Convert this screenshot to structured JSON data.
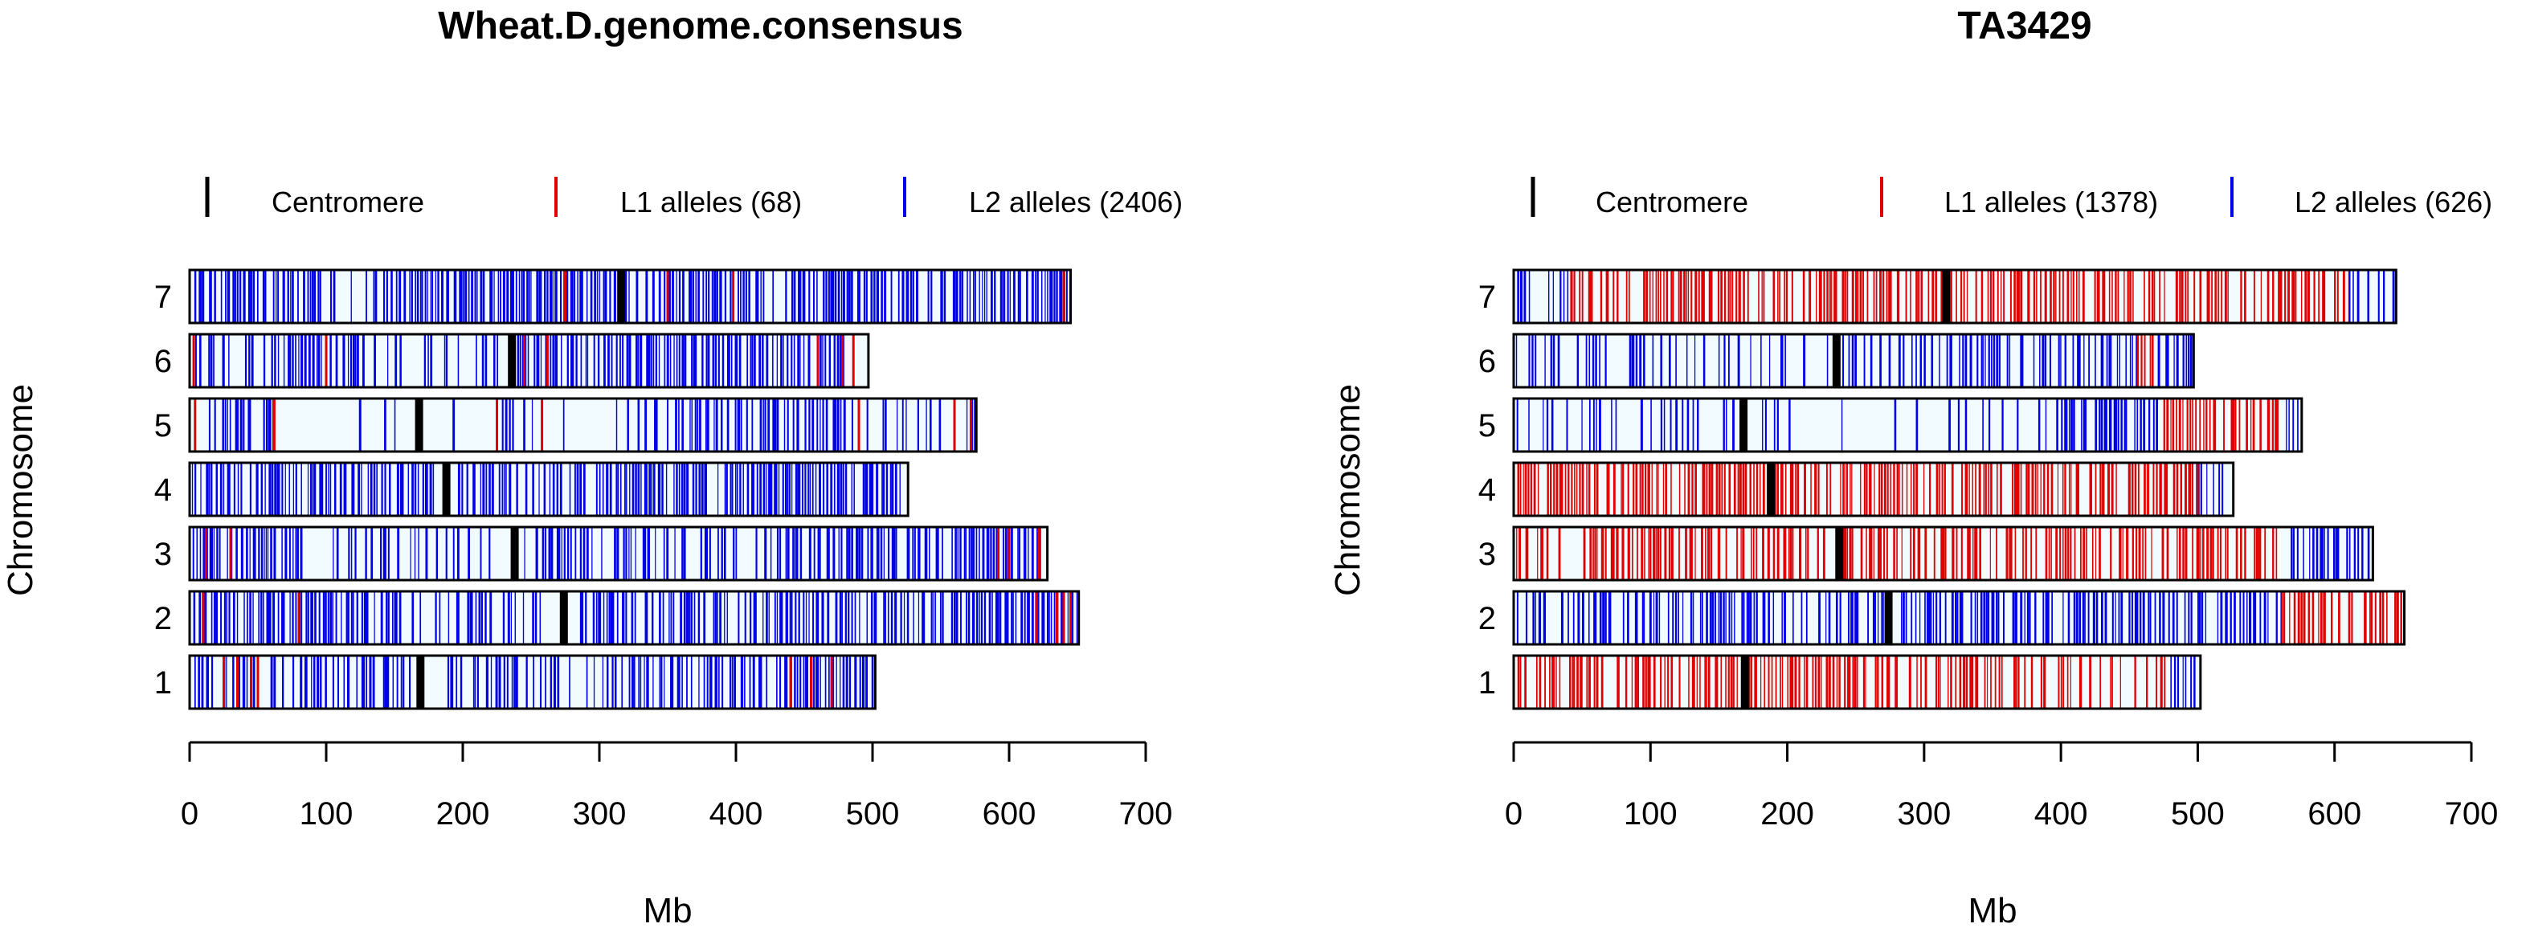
{
  "colors": {
    "centromere": "#000000",
    "l1": "#e00000",
    "l2": "#0000e8",
    "background": "#f2fbff",
    "outline": "#000000"
  },
  "chart_data": [
    {
      "type": "heatmap",
      "title": "Wheat.D.genome.consensus",
      "xlabel": "Mb",
      "ylabel": "Chromosome",
      "xlim": [
        0,
        700
      ],
      "xticks": [
        0,
        100,
        200,
        300,
        400,
        500,
        600,
        700
      ],
      "chromosomes": [
        {
          "name": "7",
          "length": 645,
          "centromere": 316,
          "segments": [
            {
              "range": [
                2,
                95
              ],
              "type": "L2",
              "density": 0.7
            },
            {
              "range": [
                95,
                160
              ],
              "type": "L2",
              "density": 0.35
            },
            {
              "range": [
                160,
                300
              ],
              "type": "L2",
              "density": 0.85
            },
            {
              "range": [
                300,
                560
              ],
              "type": "L2",
              "density": 0.8
            },
            {
              "range": [
                560,
                643
              ],
              "type": "L2",
              "density": 0.9
            }
          ],
          "l1_positions": [
            275,
            350,
            398,
            640
          ]
        },
        {
          "name": "6",
          "length": 497,
          "centromere": 236,
          "segments": [
            {
              "range": [
                2,
                60
              ],
              "type": "L2",
              "density": 0.4
            },
            {
              "range": [
                60,
                130
              ],
              "type": "L2",
              "density": 0.75
            },
            {
              "range": [
                130,
                232
              ],
              "type": "L2",
              "density": 0.35
            },
            {
              "range": [
                240,
                330
              ],
              "type": "L2",
              "density": 0.7
            },
            {
              "range": [
                330,
                480
              ],
              "type": "L2",
              "density": 0.8
            }
          ],
          "l1_positions": [
            3,
            100,
            245,
            262,
            460,
            478,
            486
          ]
        },
        {
          "name": "5",
          "length": 576,
          "centromere": 168,
          "segments": [
            {
              "range": [
                2,
                60
              ],
              "type": "L2",
              "density": 0.4
            },
            {
              "range": [
                60,
                160
              ],
              "type": "L2",
              "density": 0.12
            },
            {
              "range": [
                175,
                320
              ],
              "type": "L2",
              "density": 0.12
            },
            {
              "range": [
                320,
                520
              ],
              "type": "L2",
              "density": 0.55
            },
            {
              "range": [
                520,
                575
              ],
              "type": "L2",
              "density": 0.35
            }
          ],
          "l1_positions": [
            4,
            62,
            225,
            258,
            490,
            560,
            572
          ]
        },
        {
          "name": "4",
          "length": 526,
          "centromere": 188,
          "segments": [
            {
              "range": [
                2,
                180
              ],
              "type": "L2",
              "density": 0.8
            },
            {
              "range": [
                195,
                300
              ],
              "type": "L2",
              "density": 0.55
            },
            {
              "range": [
                300,
                520
              ],
              "type": "L2",
              "density": 0.85
            }
          ],
          "l1_positions": []
        },
        {
          "name": "3",
          "length": 628,
          "centromere": 238,
          "segments": [
            {
              "range": [
                2,
                80
              ],
              "type": "L2",
              "density": 0.8
            },
            {
              "range": [
                80,
                230
              ],
              "type": "L2",
              "density": 0.3
            },
            {
              "range": [
                245,
                560
              ],
              "type": "L2",
              "density": 0.6
            },
            {
              "range": [
                560,
                626
              ],
              "type": "L2",
              "density": 0.9
            }
          ],
          "l1_positions": [
            12,
            30,
            592,
            600,
            622
          ]
        },
        {
          "name": "2",
          "length": 651,
          "centromere": 274,
          "segments": [
            {
              "range": [
                2,
                130
              ],
              "type": "L2",
              "density": 0.75
            },
            {
              "range": [
                130,
                262
              ],
              "type": "L2",
              "density": 0.4
            },
            {
              "range": [
                285,
                420
              ],
              "type": "L2",
              "density": 0.65
            },
            {
              "range": [
                420,
                648
              ],
              "type": "L2",
              "density": 0.8
            }
          ],
          "l1_positions": [
            10,
            80,
            620,
            635,
            640,
            645
          ]
        },
        {
          "name": "1",
          "length": 502,
          "centromere": 169,
          "segments": [
            {
              "range": [
                2,
                160
              ],
              "type": "L2",
              "density": 0.6
            },
            {
              "range": [
                180,
                330
              ],
              "type": "L2",
              "density": 0.45
            },
            {
              "range": [
                330,
                500
              ],
              "type": "L2",
              "density": 0.75
            }
          ],
          "l1_positions": [
            25,
            35,
            45,
            50,
            440,
            455,
            470
          ]
        }
      ],
      "legend": [
        {
          "label": "Centromere",
          "type": "centromere"
        },
        {
          "label": "L1 alleles (68)",
          "type": "L1"
        },
        {
          "label": "L2 alleles (2406)",
          "type": "L2"
        }
      ]
    },
    {
      "type": "heatmap",
      "title": "TA3429",
      "xlabel": "Mb",
      "ylabel": "Chromosome",
      "xlim": [
        0,
        700
      ],
      "xticks": [
        0,
        100,
        200,
        300,
        400,
        500,
        600,
        700
      ],
      "chromosomes": [
        {
          "name": "7",
          "length": 645,
          "centromere": 316,
          "segments": [
            {
              "range": [
                2,
                40
              ],
              "type": "L2",
              "density": 0.25
            },
            {
              "range": [
                40,
                560
              ],
              "type": "L1",
              "density": 0.65
            },
            {
              "range": [
                560,
                610
              ],
              "type": "L1",
              "density": 0.85
            },
            {
              "range": [
                610,
                643
              ],
              "type": "L2",
              "density": 0.6
            }
          ],
          "l1_positions": []
        },
        {
          "name": "6",
          "length": 497,
          "centromere": 236,
          "segments": [
            {
              "range": [
                2,
                230
              ],
              "type": "L2",
              "density": 0.3
            },
            {
              "range": [
                240,
                455
              ],
              "type": "L2",
              "density": 0.55
            },
            {
              "range": [
                455,
                470
              ],
              "type": "L1",
              "density": 0.7
            },
            {
              "range": [
                470,
                495
              ],
              "type": "L2",
              "density": 0.8
            }
          ],
          "l1_positions": []
        },
        {
          "name": "5",
          "length": 576,
          "centromere": 168,
          "segments": [
            {
              "range": [
                2,
                160
              ],
              "type": "L2",
              "density": 0.35
            },
            {
              "range": [
                175,
                400
              ],
              "type": "L2",
              "density": 0.18
            },
            {
              "range": [
                400,
                470
              ],
              "type": "L2",
              "density": 0.85
            },
            {
              "range": [
                470,
                560
              ],
              "type": "L1",
              "density": 0.7
            },
            {
              "range": [
                560,
                575
              ],
              "type": "L2",
              "density": 0.4
            }
          ],
          "l1_positions": []
        },
        {
          "name": "4",
          "length": 526,
          "centromere": 188,
          "segments": [
            {
              "range": [
                2,
                500
              ],
              "type": "L1",
              "density": 0.75
            },
            {
              "range": [
                500,
                520
              ],
              "type": "L2",
              "density": 0.5
            }
          ],
          "l1_positions": []
        },
        {
          "name": "3",
          "length": 628,
          "centromere": 238,
          "segments": [
            {
              "range": [
                2,
                560
              ],
              "type": "L1",
              "density": 0.65
            },
            {
              "range": [
                560,
                626
              ],
              "type": "L2",
              "density": 0.55
            }
          ],
          "l1_positions": []
        },
        {
          "name": "2",
          "length": 651,
          "centromere": 274,
          "segments": [
            {
              "range": [
                2,
                270
              ],
              "type": "L2",
              "density": 0.6
            },
            {
              "range": [
                280,
                560
              ],
              "type": "L2",
              "density": 0.7
            },
            {
              "range": [
                560,
                648
              ],
              "type": "L1",
              "density": 0.55
            }
          ],
          "l1_positions": []
        },
        {
          "name": "1",
          "length": 502,
          "centromere": 169,
          "segments": [
            {
              "range": [
                2,
                480
              ],
              "type": "L1",
              "density": 0.6
            },
            {
              "range": [
                480,
                500
              ],
              "type": "L2",
              "density": 0.8
            }
          ],
          "l1_positions": []
        }
      ],
      "legend": [
        {
          "label": "Centromere",
          "type": "centromere"
        },
        {
          "label": "L1 alleles (1378)",
          "type": "L1"
        },
        {
          "label": "L2 alleles (626)",
          "type": "L2"
        }
      ]
    }
  ]
}
